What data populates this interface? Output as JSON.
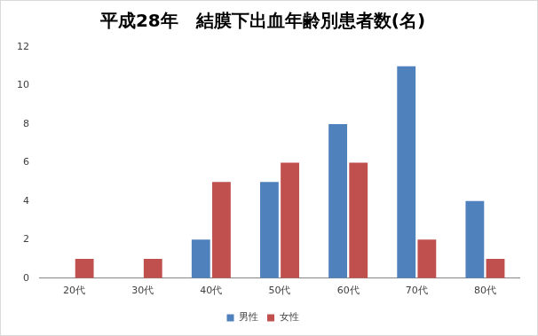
{
  "chart_data": {
    "type": "bar",
    "title": "平成28年　結膜下出血年齢別患者数(名)",
    "categories": [
      "20代",
      "30代",
      "40代",
      "50代",
      "60代",
      "70代",
      "80代"
    ],
    "series": [
      {
        "name": "男性",
        "color": "#4f81bd",
        "values": [
          0,
          0,
          2,
          5,
          8,
          11,
          4
        ]
      },
      {
        "name": "女性",
        "color": "#c0504d",
        "values": [
          1,
          1,
          5,
          6,
          6,
          2,
          1
        ]
      }
    ],
    "ylim": [
      0,
      12
    ],
    "yticks": [
      0,
      2,
      4,
      6,
      8,
      10,
      12
    ],
    "grid": false,
    "legend": "bottom"
  }
}
